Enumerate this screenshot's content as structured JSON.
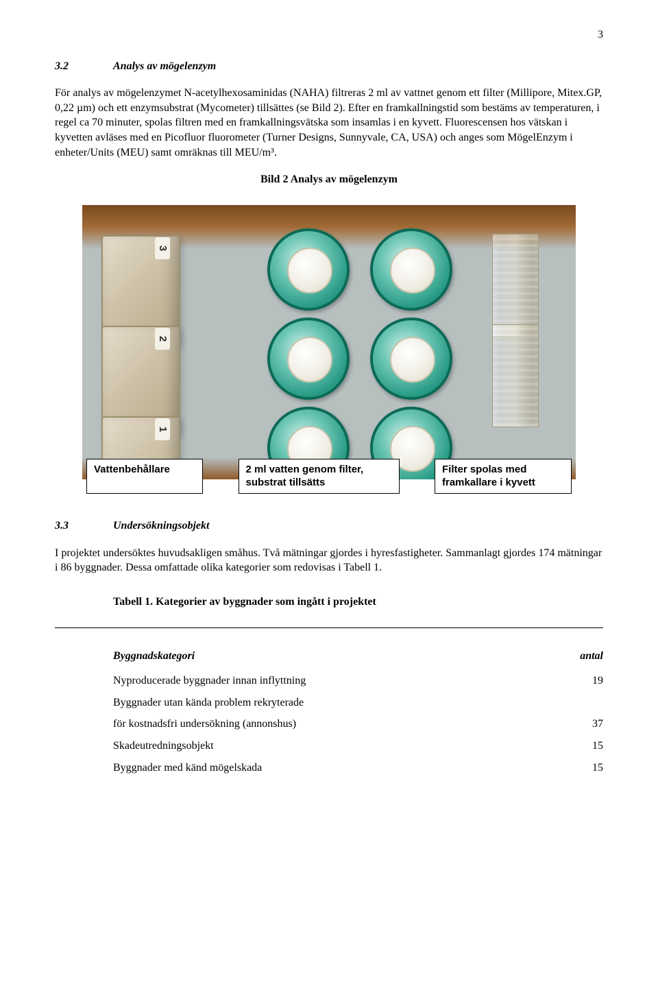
{
  "page_number": "3",
  "section_3_2": {
    "number": "3.2",
    "title": "Analys av mögelenzym",
    "paragraph": "För analys av mögelenzymet N-acetylhexosaminidas (NAHA) filtreras 2 ml av vattnet genom ett filter (Millipore, Mitex.GP, 0,22 µm) och ett enzymsubstrat (Mycometer) tillsättes (se Bild 2). Efter en framkallningstid som bestäms av temperaturen, i regel ca 70 minuter, spolas filtren med en framkallningsvätska som insamlas i en kyvett. Fluorescensen hos vätskan i kyvetten avläses med en Picofluor fluorometer (Turner Designs, Sunnyvale, CA, USA) och anges som MögelEnzym i enheter/Units (MEU) samt omräknas till MEU/m³."
  },
  "figure": {
    "caption": "Bild 2 Analys av mögelenzym",
    "labels": {
      "a": "Vattenbehållare",
      "b": "2 ml vatten genom filter, substrat tillsätts",
      "c": "Filter spolas med framkallare i kyvett"
    },
    "cuvette_tags": [
      "3",
      "2",
      "1"
    ],
    "colors": {
      "photo_bg_top": "#7a4a20",
      "photo_bg_mid": "#b7bfbf",
      "filter_ring": "#0d7d67",
      "filter_center": "#f1efe6",
      "cuvette": "#cbbfa5",
      "label_border": "#000000",
      "label_bg": "#ffffff"
    }
  },
  "section_3_3": {
    "number": "3.3",
    "title": "Undersökningsobjekt",
    "paragraph": "I projektet undersöktes huvudsakligen småhus. Två mätningar gjordes i hyresfastigheter. Sammanlagt gjordes 174 mätningar i 86 byggnader. Dessa omfattade olika kategorier som redovisas i Tabell 1."
  },
  "table": {
    "title": "Tabell 1. Kategorier av byggnader som ingått i projektet",
    "columns": [
      "Byggnadskategori",
      "antal"
    ],
    "rows": [
      [
        "Nyproducerade byggnader innan inflyttning",
        "19"
      ],
      [
        "Byggnader utan kända problem rekryterade",
        ""
      ],
      [
        "för kostnadsfri undersökning (annonshus)",
        "37"
      ],
      [
        "Skadeutredningsobjekt",
        "15"
      ],
      [
        "Byggnader med känd mögelskada",
        "15"
      ]
    ]
  }
}
